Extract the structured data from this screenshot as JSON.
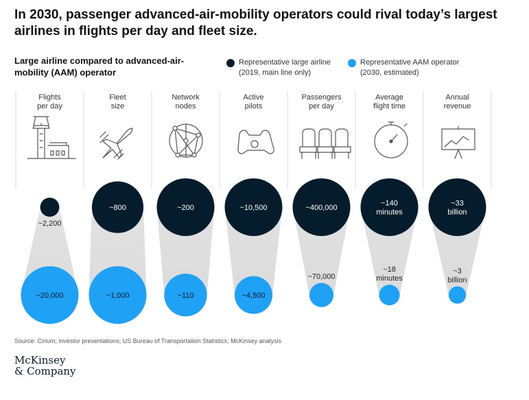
{
  "headline": "In 2030, passenger advanced-air-mobility operators could rival today’s largest airlines in flights per day and fleet size.",
  "subtitle": "Large airline compared to advanced-air-mobility (AAM) operator",
  "legend": [
    {
      "line1": "Representative large airline",
      "line2": "(2019, main line only)",
      "color": "#051c2c"
    },
    {
      "line1": "Representative AAM operator",
      "line2": "(2030, estimated)",
      "color": "#1fa1f5"
    }
  ],
  "colors": {
    "airline": "#051c2c",
    "aam": "#1fa1f5",
    "divider": "#d9d9d9",
    "icon": "#555555"
  },
  "source": "Source: Cirium; investor presentations; US Bureau of Transportation Statistics; McKinsey analysis",
  "logo": {
    "line1": "McKinsey",
    "line2": "& Company"
  },
  "chart_data": {
    "type": "bubble-comparison",
    "series": [
      {
        "name": "Representative large airline (2019, main line only)"
      },
      {
        "name": "Representative AAM operator (2030, estimated)"
      }
    ],
    "metrics": [
      {
        "header": [
          "Flights",
          "per day"
        ],
        "icon": "airport-tower-icon",
        "airline": {
          "value": 2200,
          "label": [
            "~2,200"
          ]
        },
        "aam": {
          "value": 20000,
          "label": [
            "~20,000"
          ]
        }
      },
      {
        "header": [
          "Fleet",
          "size"
        ],
        "icon": "airplane-icon",
        "airline": {
          "value": 800,
          "label": [
            "~800"
          ]
        },
        "aam": {
          "value": 1000,
          "label": [
            "~1,000"
          ]
        }
      },
      {
        "header": [
          "Network",
          "nodes"
        ],
        "icon": "network-icon",
        "airline": {
          "value": 200,
          "label": [
            "~200"
          ]
        },
        "aam": {
          "value": 110,
          "label": [
            "~110"
          ]
        }
      },
      {
        "header": [
          "Active",
          "pilots"
        ],
        "icon": "yoke-icon",
        "airline": {
          "value": 10500,
          "label": [
            "~10,500"
          ]
        },
        "aam": {
          "value": 4500,
          "label": [
            "~4,500"
          ]
        }
      },
      {
        "header": [
          "Passengers",
          "per day"
        ],
        "icon": "seats-icon",
        "airline": {
          "value": 400000,
          "label": [
            "~400,000"
          ]
        },
        "aam": {
          "value": 70000,
          "label": [
            "~70,000"
          ]
        }
      },
      {
        "header": [
          "Average",
          "flight time"
        ],
        "icon": "stopwatch-icon",
        "airline": {
          "value": 140,
          "unit": "minutes",
          "label": [
            "~140",
            "minutes"
          ]
        },
        "aam": {
          "value": 18,
          "unit": "minutes",
          "label": [
            "~18",
            "minutes"
          ]
        }
      },
      {
        "header": [
          "Annual",
          "revenue"
        ],
        "icon": "revenue-chart-icon",
        "airline": {
          "value": 33,
          "unit": "billion",
          "label": [
            "~33",
            "billion"
          ]
        },
        "aam": {
          "value": 3,
          "unit": "billion",
          "label": [
            "~3",
            "billion"
          ]
        }
      }
    ]
  }
}
